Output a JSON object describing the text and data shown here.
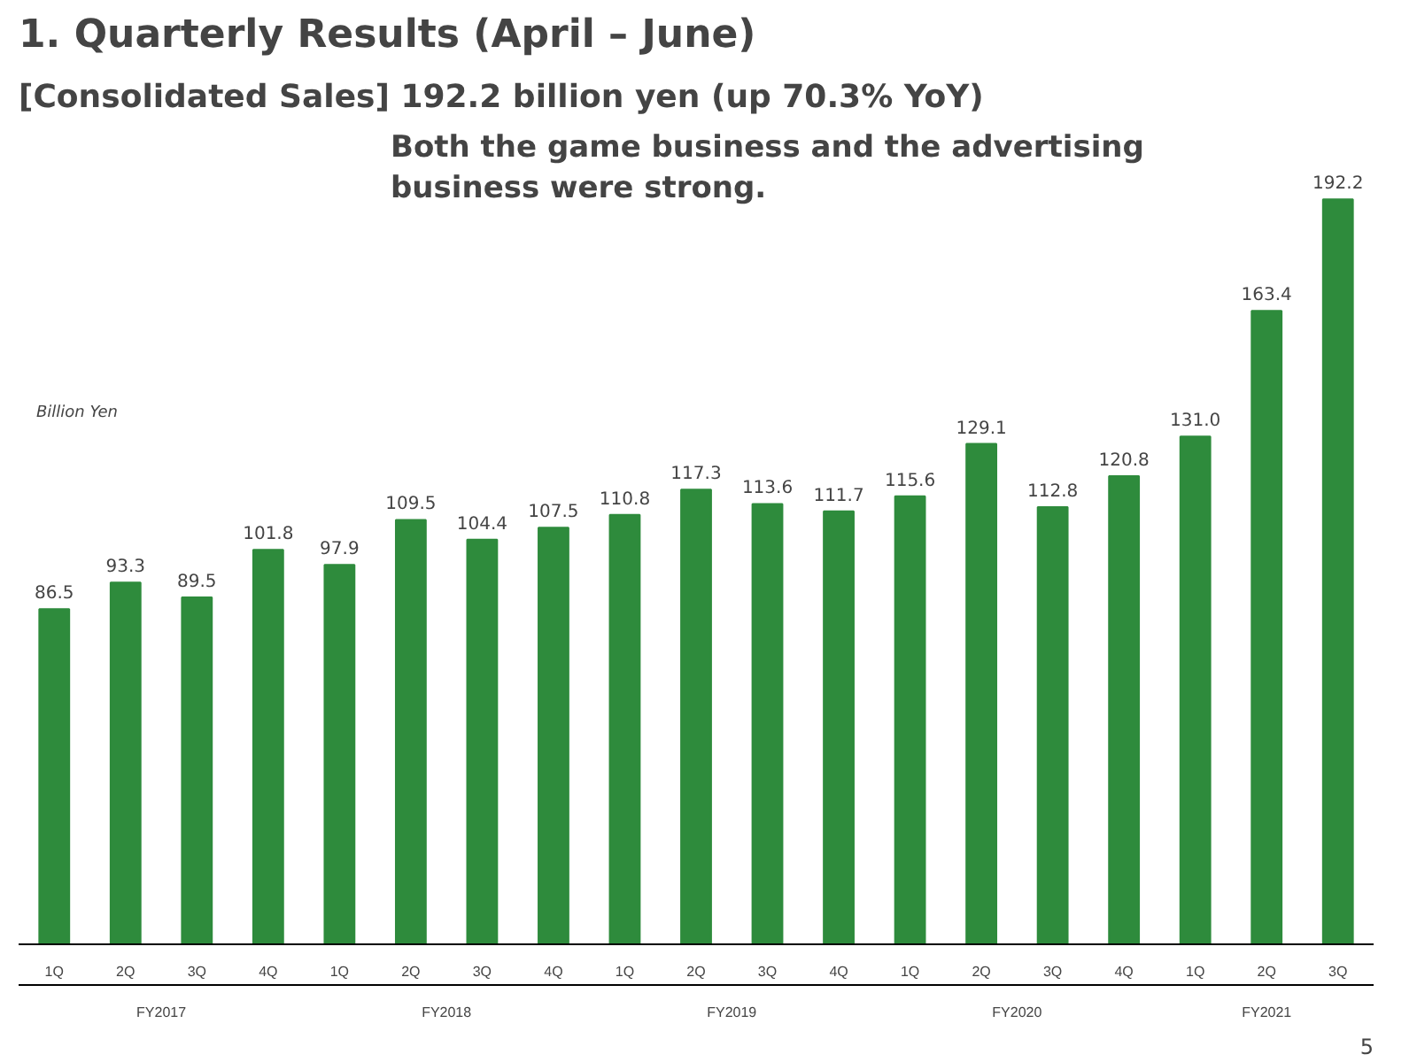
{
  "chart_data": {
    "type": "bar",
    "title": "1.  Quarterly Results (April – June)",
    "subtitle": "[Consolidated Sales]  192.2 billion yen (up 70.3% YoY)",
    "ylabel": "Billion Yen",
    "categories": [
      "1Q",
      "2Q",
      "3Q",
      "4Q",
      "1Q",
      "2Q",
      "3Q",
      "4Q",
      "1Q",
      "2Q",
      "3Q",
      "4Q",
      "1Q",
      "2Q",
      "3Q",
      "4Q",
      "1Q",
      "2Q",
      "3Q"
    ],
    "values": [
      86.5,
      93.3,
      89.5,
      101.8,
      97.9,
      109.5,
      104.4,
      107.5,
      110.8,
      117.3,
      113.6,
      111.7,
      115.6,
      129.1,
      112.8,
      120.8,
      131.0,
      163.4,
      192.2
    ],
    "value_labels": [
      "86.5",
      "93.3",
      "89.5",
      "101.8",
      "97.9",
      "109.5",
      "104.4",
      "107.5",
      "110.8",
      "117.3",
      "113.6",
      "111.7",
      "115.6",
      "129.1",
      "112.8",
      "120.8",
      "131.0",
      "163.4",
      "192.2"
    ],
    "color": "#2e8b3c",
    "grid": false,
    "annotations": [
      "Both the game business and the advertising\nbusiness were strong.",
      "FY2017",
      "FY2018",
      "FY2019",
      "FY2020",
      "FY2021",
      "5"
    ]
  }
}
